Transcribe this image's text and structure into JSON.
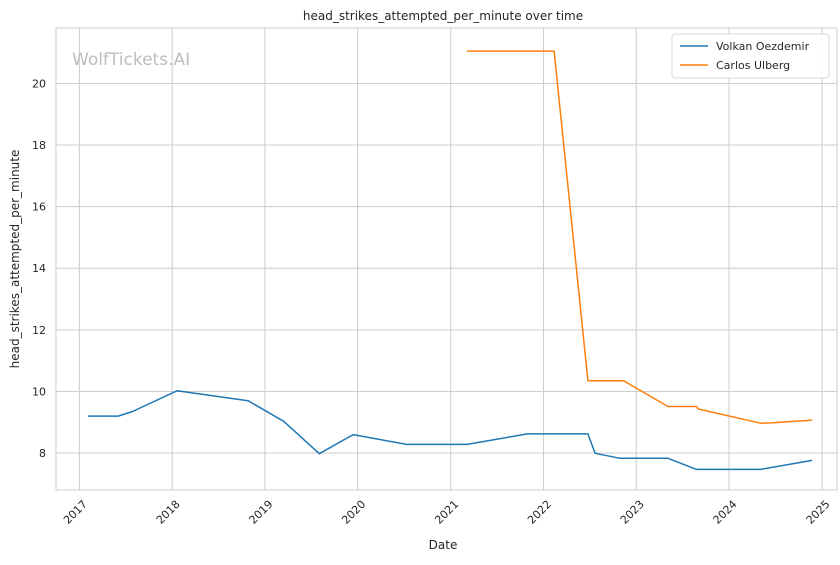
{
  "chart_data": {
    "type": "line",
    "title": "head_strikes_attempted_per_minute over time",
    "xlabel": "Date",
    "ylabel": "head_strikes_attempted_per_minute",
    "x_ticks": [
      "2017",
      "2018",
      "2019",
      "2020",
      "2021",
      "2022",
      "2023",
      "2024",
      "2025"
    ],
    "y_ticks": [
      8,
      10,
      12,
      14,
      16,
      18,
      20
    ],
    "xlim": [
      "2016-10-01",
      "2025-03-01"
    ],
    "ylim": [
      6.8,
      21.8
    ],
    "grid": true,
    "legend_position": "top-right",
    "watermark": "WolfTickets.AI",
    "series": [
      {
        "name": "Volkan Oezdemir",
        "color": "#1f77b4",
        "points": [
          [
            "2017-02-04",
            9.2
          ],
          [
            "2017-06-03",
            9.2
          ],
          [
            "2017-07-29",
            9.35
          ],
          [
            "2018-01-20",
            10.02
          ],
          [
            "2018-10-27",
            9.7
          ],
          [
            "2019-03-16",
            9.03
          ],
          [
            "2019-08-03",
            7.98
          ],
          [
            "2019-12-14",
            8.6
          ],
          [
            "2020-07-12",
            8.28
          ],
          [
            "2021-03-06",
            8.28
          ],
          [
            "2021-10-30",
            8.62
          ],
          [
            "2022-06-25",
            8.62
          ],
          [
            "2022-07-23",
            7.99
          ],
          [
            "2022-10-29",
            7.83
          ],
          [
            "2023-05-06",
            7.83
          ],
          [
            "2023-08-26",
            7.47
          ],
          [
            "2024-05-04",
            7.47
          ],
          [
            "2024-11-23",
            7.76
          ]
        ]
      },
      {
        "name": "Carlos Ulberg",
        "color": "#ff7f0e",
        "points": [
          [
            "2021-03-06",
            21.05
          ],
          [
            "2022-02-12",
            21.05
          ],
          [
            "2022-06-25",
            10.35
          ],
          [
            "2022-11-12",
            10.35
          ],
          [
            "2023-05-06",
            9.51
          ],
          [
            "2023-08-26",
            9.51
          ],
          [
            "2023-09-02",
            9.43
          ],
          [
            "2024-05-04",
            8.97
          ],
          [
            "2024-06-15",
            8.98
          ],
          [
            "2024-11-23",
            9.07
          ]
        ]
      }
    ]
  }
}
